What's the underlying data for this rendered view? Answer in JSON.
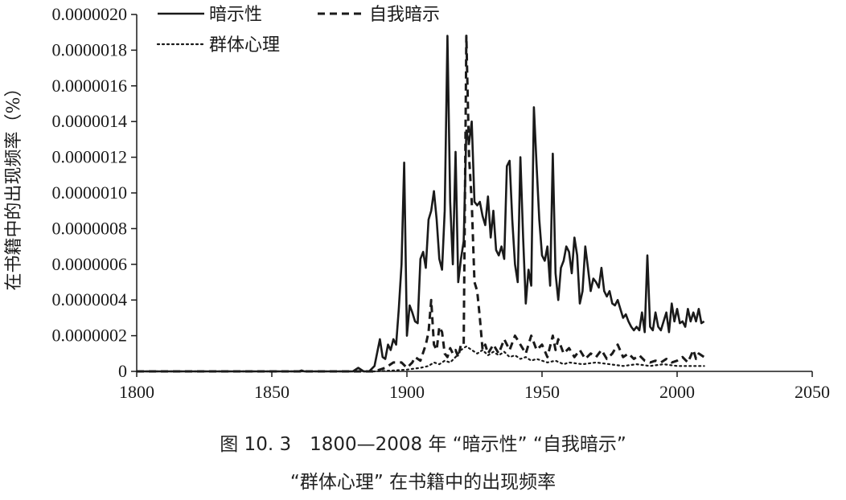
{
  "caption": {
    "line1": "图 10. 3　1800—2008 年 “暗示性” “自我暗示”",
    "line2": "“群体心理” 在书籍中的出现频率"
  },
  "chart_data": {
    "type": "line",
    "title": "",
    "xlabel": "",
    "ylabel": "在书籍中的出现频率（%）",
    "xlim": [
      1800,
      2050
    ],
    "ylim": [
      0,
      2e-06
    ],
    "x_ticks": [
      "1800",
      "1850",
      "1900",
      "1950",
      "2000",
      "2050"
    ],
    "y_ticks": [
      "0",
      "0.0000002",
      "0.0000004",
      "0.0000006",
      "0.0000008",
      "0.0000010",
      "0.0000012",
      "0.0000014",
      "0.0000016",
      "0.0000018",
      "0.0000020"
    ],
    "legend_position": "top",
    "colors": {
      "line": "#1a1a1a",
      "axis": "#1a1a1a"
    },
    "series": [
      {
        "name": "暗示性",
        "style": "solid",
        "points": [
          [
            1800,
            0
          ],
          [
            1860,
            0
          ],
          [
            1861,
            5e-09
          ],
          [
            1862,
            0
          ],
          [
            1880,
            0
          ],
          [
            1882,
            2e-08
          ],
          [
            1884,
            0
          ],
          [
            1886,
            0
          ],
          [
            1888,
            3e-08
          ],
          [
            1890,
            1.8e-07
          ],
          [
            1891,
            8e-08
          ],
          [
            1892,
            7e-08
          ],
          [
            1893,
            1.5e-07
          ],
          [
            1894,
            1.2e-07
          ],
          [
            1895,
            1.8e-07
          ],
          [
            1896,
            1.5e-07
          ],
          [
            1897,
            3.5e-07
          ],
          [
            1898,
            6e-07
          ],
          [
            1899,
            1.17e-06
          ],
          [
            1900,
            2e-07
          ],
          [
            1901,
            3.7e-07
          ],
          [
            1902,
            3.3e-07
          ],
          [
            1903,
            2.8e-07
          ],
          [
            1904,
            2.7e-07
          ],
          [
            1905,
            6.3e-07
          ],
          [
            1906,
            6.7e-07
          ],
          [
            1907,
            5.8e-07
          ],
          [
            1908,
            8.5e-07
          ],
          [
            1909,
            9e-07
          ],
          [
            1910,
            1.01e-06
          ],
          [
            1911,
            8.5e-07
          ],
          [
            1912,
            6.3e-07
          ],
          [
            1913,
            5.7e-07
          ],
          [
            1914,
            9e-07
          ],
          [
            1915,
            1.88e-06
          ],
          [
            1916,
            9.5e-07
          ],
          [
            1917,
            6e-07
          ],
          [
            1918,
            1.23e-06
          ],
          [
            1919,
            5e-07
          ],
          [
            1920,
            6.3e-07
          ],
          [
            1921,
            7.3e-07
          ],
          [
            1922,
            1.35e-06
          ],
          [
            1923,
            1.28e-06
          ],
          [
            1924,
            1.4e-06
          ],
          [
            1925,
            9.5e-07
          ],
          [
            1926,
            9.3e-07
          ],
          [
            1927,
            9.5e-07
          ],
          [
            1928,
            8.7e-07
          ],
          [
            1929,
            8.2e-07
          ],
          [
            1930,
            9.8e-07
          ],
          [
            1931,
            7.5e-07
          ],
          [
            1932,
            9e-07
          ],
          [
            1933,
            6.8e-07
          ],
          [
            1934,
            6.5e-07
          ],
          [
            1935,
            7e-07
          ],
          [
            1936,
            6.3e-07
          ],
          [
            1937,
            1.15e-06
          ],
          [
            1938,
            1.18e-06
          ],
          [
            1939,
            8.5e-07
          ],
          [
            1940,
            6e-07
          ],
          [
            1941,
            5e-07
          ],
          [
            1942,
            1.2e-06
          ],
          [
            1943,
            7.5e-07
          ],
          [
            1944,
            3.8e-07
          ],
          [
            1945,
            5.7e-07
          ],
          [
            1946,
            4.8e-07
          ],
          [
            1947,
            1.48e-06
          ],
          [
            1948,
            1.15e-06
          ],
          [
            1949,
            8.5e-07
          ],
          [
            1950,
            6.5e-07
          ],
          [
            1951,
            6.2e-07
          ],
          [
            1952,
            7e-07
          ],
          [
            1953,
            4.8e-07
          ],
          [
            1954,
            1.22e-06
          ],
          [
            1955,
            5.5e-07
          ],
          [
            1956,
            4e-07
          ],
          [
            1957,
            5.8e-07
          ],
          [
            1958,
            6.2e-07
          ],
          [
            1959,
            7e-07
          ],
          [
            1960,
            6.7e-07
          ],
          [
            1961,
            5.5e-07
          ],
          [
            1962,
            7.5e-07
          ],
          [
            1963,
            6.5e-07
          ],
          [
            1964,
            3.8e-07
          ],
          [
            1965,
            4.5e-07
          ],
          [
            1966,
            7e-07
          ],
          [
            1967,
            5.8e-07
          ],
          [
            1968,
            4.5e-07
          ],
          [
            1969,
            5.2e-07
          ],
          [
            1970,
            5e-07
          ],
          [
            1971,
            4.7e-07
          ],
          [
            1972,
            5.8e-07
          ],
          [
            1973,
            4.5e-07
          ],
          [
            1974,
            4.2e-07
          ],
          [
            1975,
            4.5e-07
          ],
          [
            1976,
            3.8e-07
          ],
          [
            1977,
            3.7e-07
          ],
          [
            1978,
            4e-07
          ],
          [
            1979,
            3.5e-07
          ],
          [
            1980,
            3e-07
          ],
          [
            1981,
            3.2e-07
          ],
          [
            1982,
            2.8e-07
          ],
          [
            1983,
            2.5e-07
          ],
          [
            1984,
            2.3e-07
          ],
          [
            1985,
            2.5e-07
          ],
          [
            1986,
            2.3e-07
          ],
          [
            1987,
            3.3e-07
          ],
          [
            1988,
            2.2e-07
          ],
          [
            1989,
            6.5e-07
          ],
          [
            1990,
            2.5e-07
          ],
          [
            1991,
            2.3e-07
          ],
          [
            1992,
            3.3e-07
          ],
          [
            1993,
            2.5e-07
          ],
          [
            1994,
            2.3e-07
          ],
          [
            1995,
            2.8e-07
          ],
          [
            1996,
            3.3e-07
          ],
          [
            1997,
            2.2e-07
          ],
          [
            1998,
            3.8e-07
          ],
          [
            1999,
            2.8e-07
          ],
          [
            2000,
            3.5e-07
          ],
          [
            2001,
            2.7e-07
          ],
          [
            2002,
            2.8e-07
          ],
          [
            2003,
            2.5e-07
          ],
          [
            2004,
            3.5e-07
          ],
          [
            2005,
            2.8e-07
          ],
          [
            2006,
            3.3e-07
          ],
          [
            2007,
            2.8e-07
          ],
          [
            2008,
            3.5e-07
          ],
          [
            2009,
            2.7e-07
          ],
          [
            2010,
            2.8e-07
          ]
        ]
      },
      {
        "name": "自我暗示",
        "style": "dashed",
        "points": [
          [
            1800,
            0
          ],
          [
            1888,
            0
          ],
          [
            1892,
            2e-08
          ],
          [
            1895,
            5e-08
          ],
          [
            1898,
            5e-08
          ],
          [
            1900,
            2e-08
          ],
          [
            1902,
            5e-08
          ],
          [
            1903,
            8e-08
          ],
          [
            1905,
            6e-08
          ],
          [
            1907,
            1.5e-07
          ],
          [
            1908,
            2.2e-07
          ],
          [
            1909,
            4e-07
          ],
          [
            1910,
            1.5e-07
          ],
          [
            1911,
            1.2e-07
          ],
          [
            1912,
            2.5e-07
          ],
          [
            1913,
            2.2e-07
          ],
          [
            1914,
            1e-07
          ],
          [
            1915,
            8e-08
          ],
          [
            1916,
            1.3e-07
          ],
          [
            1917,
            1e-07
          ],
          [
            1918,
            1.2e-07
          ],
          [
            1919,
            8e-08
          ],
          [
            1920,
            1.5e-07
          ],
          [
            1921,
            1.5e-07
          ],
          [
            1922,
            1.88e-06
          ],
          [
            1923,
            1.2e-06
          ],
          [
            1924,
            9.5e-07
          ],
          [
            1925,
            5e-07
          ],
          [
            1926,
            4.5e-07
          ],
          [
            1927,
            3e-07
          ],
          [
            1928,
            1.2e-07
          ],
          [
            1929,
            1.5e-07
          ],
          [
            1930,
            1e-07
          ],
          [
            1932,
            1.5e-07
          ],
          [
            1934,
            1e-07
          ],
          [
            1936,
            1.8e-07
          ],
          [
            1938,
            1.2e-07
          ],
          [
            1940,
            2e-07
          ],
          [
            1942,
            1.5e-07
          ],
          [
            1944,
            1e-07
          ],
          [
            1946,
            2e-07
          ],
          [
            1948,
            1.2e-07
          ],
          [
            1950,
            1.5e-07
          ],
          [
            1952,
            8e-08
          ],
          [
            1954,
            2e-07
          ],
          [
            1955,
            1.2e-07
          ],
          [
            1956,
            1.8e-07
          ],
          [
            1958,
            1e-07
          ],
          [
            1960,
            1.3e-07
          ],
          [
            1962,
            8e-08
          ],
          [
            1964,
            1.2e-07
          ],
          [
            1966,
            7e-08
          ],
          [
            1968,
            1e-07
          ],
          [
            1970,
            8e-08
          ],
          [
            1972,
            1.2e-07
          ],
          [
            1974,
            7e-08
          ],
          [
            1976,
            1e-07
          ],
          [
            1978,
            1.5e-07
          ],
          [
            1980,
            8e-08
          ],
          [
            1982,
            1e-07
          ],
          [
            1984,
            7e-08
          ],
          [
            1986,
            9e-08
          ],
          [
            1988,
            6e-08
          ],
          [
            1990,
            5e-08
          ],
          [
            1992,
            6e-08
          ],
          [
            1994,
            5e-08
          ],
          [
            1996,
            7e-08
          ],
          [
            1998,
            5e-08
          ],
          [
            2000,
            6e-08
          ],
          [
            2002,
            8e-08
          ],
          [
            2004,
            5e-08
          ],
          [
            2006,
            1.2e-07
          ],
          [
            2007,
            7e-08
          ],
          [
            2008,
            1e-07
          ],
          [
            2010,
            8e-08
          ]
        ]
      },
      {
        "name": "群体心理",
        "style": "dotted",
        "points": [
          [
            1800,
            0
          ],
          [
            1888,
            0
          ],
          [
            1895,
            5e-09
          ],
          [
            1900,
            1e-08
          ],
          [
            1905,
            2e-08
          ],
          [
            1908,
            3e-08
          ],
          [
            1910,
            5e-08
          ],
          [
            1912,
            4e-08
          ],
          [
            1914,
            6e-08
          ],
          [
            1916,
            5e-08
          ],
          [
            1918,
            8e-08
          ],
          [
            1920,
            1.2e-07
          ],
          [
            1922,
            1.4e-07
          ],
          [
            1924,
            1.2e-07
          ],
          [
            1926,
            1e-07
          ],
          [
            1928,
            1.2e-07
          ],
          [
            1930,
            9e-08
          ],
          [
            1932,
            1.1e-07
          ],
          [
            1934,
            9e-08
          ],
          [
            1936,
            1.1e-07
          ],
          [
            1938,
            8e-08
          ],
          [
            1940,
            9e-08
          ],
          [
            1942,
            7e-08
          ],
          [
            1944,
            8e-08
          ],
          [
            1946,
            6e-08
          ],
          [
            1948,
            7e-08
          ],
          [
            1950,
            6e-08
          ],
          [
            1952,
            5e-08
          ],
          [
            1955,
            6e-08
          ],
          [
            1958,
            4e-08
          ],
          [
            1960,
            5e-08
          ],
          [
            1965,
            4e-08
          ],
          [
            1970,
            5e-08
          ],
          [
            1975,
            4e-08
          ],
          [
            1980,
            3e-08
          ],
          [
            1985,
            4e-08
          ],
          [
            1990,
            3e-08
          ],
          [
            1995,
            4e-08
          ],
          [
            2000,
            3e-08
          ],
          [
            2005,
            3e-08
          ],
          [
            2010,
            3e-08
          ]
        ]
      }
    ]
  }
}
